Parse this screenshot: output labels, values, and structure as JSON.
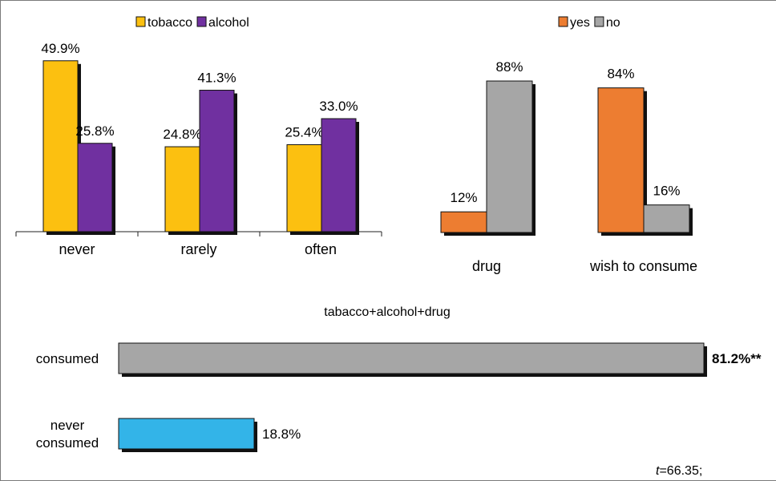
{
  "chart_data": [
    {
      "type": "bar",
      "categories": [
        "never",
        "rarely",
        "often"
      ],
      "series": [
        {
          "name": "tobacco",
          "values": [
            49.9,
            24.8,
            25.4
          ],
          "labels": [
            "49.9%",
            "24.8%",
            "25.4%"
          ],
          "color": "#FCC010"
        },
        {
          "name": "alcohol",
          "values": [
            25.8,
            41.3,
            33.0
          ],
          "labels": [
            "25.8%",
            "41.3%",
            "33.0%"
          ],
          "color": "#7030A0"
        }
      ],
      "ylim": [
        0,
        55
      ],
      "legend": "top-left"
    },
    {
      "type": "bar",
      "categories": [
        "drug",
        "wish to consume"
      ],
      "series": [
        {
          "name": "yes",
          "values": [
            12,
            84
          ],
          "labels": [
            "12%",
            "84%"
          ],
          "color": "#ED7D31"
        },
        {
          "name": "no",
          "values": [
            88,
            16
          ],
          "labels": [
            "88%",
            "16%"
          ],
          "color": "#A6A6A6"
        }
      ],
      "ylim": [
        0,
        95
      ],
      "legend": "top-right"
    },
    {
      "type": "bar",
      "orientation": "horizontal",
      "title": "tabacco+alcohol+drug",
      "categories": [
        "consumed",
        "never consumed"
      ],
      "category_lines": [
        [
          "consumed"
        ],
        [
          "never",
          "consumed"
        ]
      ],
      "values": [
        81.2,
        18.8
      ],
      "labels": [
        "81.2%**",
        "18.8%"
      ],
      "colors": [
        "#A6A6A6",
        "#33B4E8"
      ],
      "xlim": [
        0,
        81.2
      ]
    }
  ],
  "annotation": {
    "italic": "t",
    "rest": "=66.35;"
  }
}
